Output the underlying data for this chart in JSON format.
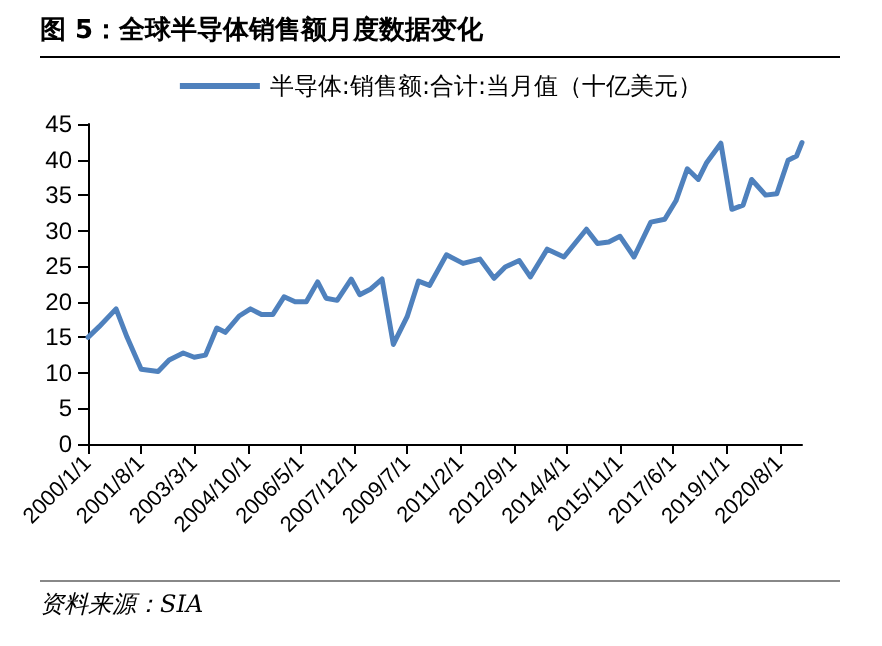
{
  "chart_data": {
    "type": "line",
    "title": "图 5：全球半导体销售额月度数据变化",
    "annotations": [
      "资料来源：SIA"
    ],
    "x": [
      "2000-01",
      "2000-05",
      "2000-11",
      "2001-03",
      "2001-08",
      "2002-02",
      "2002-06",
      "2002-11",
      "2003-03",
      "2003-07",
      "2003-11",
      "2004-02",
      "2004-07",
      "2004-11",
      "2005-03",
      "2005-07",
      "2005-11",
      "2006-03",
      "2006-07",
      "2006-11",
      "2007-02",
      "2007-06",
      "2007-11",
      "2008-02",
      "2008-06",
      "2008-10",
      "2009-02",
      "2009-07",
      "2009-11",
      "2010-03",
      "2010-09",
      "2011-03",
      "2011-09",
      "2012-02",
      "2012-06",
      "2012-11",
      "2013-03",
      "2013-09",
      "2014-03",
      "2014-11",
      "2015-03",
      "2015-07",
      "2015-11",
      "2016-04",
      "2016-10",
      "2017-03",
      "2017-07",
      "2017-11",
      "2018-03",
      "2018-06",
      "2018-11",
      "2019-03",
      "2019-07",
      "2019-10",
      "2020-03",
      "2020-07",
      "2020-11",
      "2021-02",
      "2021-04"
    ],
    "series": [
      {
        "name": "半导体:销售额:合计:当月值（十亿美元）",
        "color": "#4f81bd",
        "values": [
          15,
          16.5,
          19,
          15,
          10.5,
          10.2,
          11.8,
          12.8,
          12.2,
          12.5,
          16.3,
          15.7,
          18,
          19,
          18.2,
          18.2,
          20.7,
          20,
          20,
          22.8,
          20.5,
          20.2,
          23.2,
          21,
          21.8,
          23.2,
          14,
          17.9,
          22.9,
          22.3,
          26.6,
          25.4,
          26,
          23.3,
          24.9,
          25.8,
          23.5,
          27.4,
          26.3,
          30.2,
          28.2,
          28.4,
          29.2,
          26.3,
          31.2,
          31.6,
          34.2,
          38.7,
          37.2,
          39.6,
          42.3,
          33,
          33.6,
          37.2,
          35,
          35.2,
          39.9,
          40.5,
          42.4
        ]
      }
    ],
    "xlim": [
      "2000-01",
      "2021-04"
    ],
    "xticks": [
      {
        "value": "2000-01",
        "label": "2000/1/1"
      },
      {
        "value": "2001-08",
        "label": "2001/8/1"
      },
      {
        "value": "2003-03",
        "label": "2003/3/1"
      },
      {
        "value": "2004-10",
        "label": "2004/10/1"
      },
      {
        "value": "2006-05",
        "label": "2006/5/1"
      },
      {
        "value": "2007-12",
        "label": "2007/12/1"
      },
      {
        "value": "2009-07",
        "label": "2009/7/1"
      },
      {
        "value": "2011-02",
        "label": "2011/2/1"
      },
      {
        "value": "2012-09",
        "label": "2012/9/1"
      },
      {
        "value": "2014-04",
        "label": "2014/4/1"
      },
      {
        "value": "2015-11",
        "label": "2015/11/1"
      },
      {
        "value": "2017-06",
        "label": "2017/6/1"
      },
      {
        "value": "2019-01",
        "label": "2019/1/1"
      },
      {
        "value": "2020-08",
        "label": "2020/8/1"
      }
    ],
    "ylim": [
      0,
      45
    ],
    "yticks": [
      0,
      5,
      10,
      15,
      20,
      25,
      30,
      35,
      40,
      45
    ],
    "grid": false,
    "legend": "top",
    "marker": "none",
    "line_style": "solid"
  }
}
